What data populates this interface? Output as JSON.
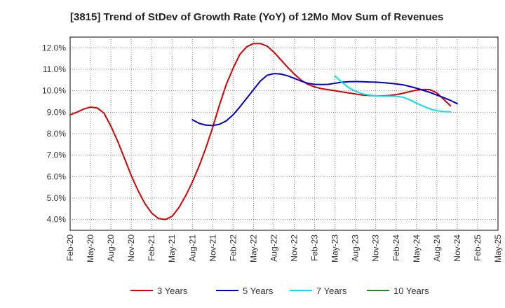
{
  "chart_data": {
    "type": "line",
    "title": "[3815]  Trend of StDev of Growth Rate (YoY) of 12Mo Mov Sum of Revenues",
    "xlabel": "",
    "ylabel": "",
    "ylim": [
      3.5,
      12.5
    ],
    "yticks": [
      4.0,
      5.0,
      6.0,
      7.0,
      8.0,
      9.0,
      10.0,
      11.0,
      12.0
    ],
    "ytick_labels": [
      "4.0%",
      "5.0%",
      "6.0%",
      "7.0%",
      "8.0%",
      "9.0%",
      "10.0%",
      "11.0%",
      "12.0%"
    ],
    "xtick_labels": [
      "Feb-20",
      "May-20",
      "Aug-20",
      "Nov-20",
      "Feb-21",
      "May-21",
      "Aug-21",
      "Nov-21",
      "Feb-22",
      "May-22",
      "Aug-22",
      "Nov-22",
      "Feb-23",
      "May-23",
      "Aug-23",
      "Nov-23",
      "Feb-24",
      "May-24",
      "Aug-24",
      "Nov-24",
      "Feb-25",
      "May-25"
    ],
    "grid": true,
    "legend_position": "bottom",
    "series": [
      {
        "name": "3 Years",
        "color": "#dd0000",
        "start_index": 0,
        "values": [
          8.88,
          9.0,
          9.15,
          9.24,
          9.2,
          8.95,
          8.35,
          7.65,
          6.85,
          6.05,
          5.35,
          4.75,
          4.3,
          4.05,
          4.0,
          4.15,
          4.55,
          5.1,
          5.75,
          6.5,
          7.35,
          8.3,
          9.35,
          10.3,
          11.05,
          11.7,
          12.05,
          12.2,
          12.2,
          12.08,
          11.8,
          11.45,
          11.1,
          10.78,
          10.5,
          10.3,
          10.18,
          10.1,
          10.05,
          10.0,
          9.95,
          9.9,
          9.85,
          9.8,
          9.78,
          9.76,
          9.76,
          9.78,
          9.82,
          9.88,
          9.96,
          10.03,
          10.06,
          10.05,
          9.9,
          9.6,
          9.3
        ]
      },
      {
        "name": "5 Years",
        "color": "#0000cc",
        "start_index": 18,
        "values": [
          8.65,
          8.48,
          8.4,
          8.38,
          8.44,
          8.6,
          8.88,
          9.25,
          9.65,
          10.05,
          10.45,
          10.72,
          10.8,
          10.78,
          10.7,
          10.58,
          10.45,
          10.35,
          10.3,
          10.29,
          10.3,
          10.35,
          10.4,
          10.42,
          10.43,
          10.42,
          10.41,
          10.4,
          10.38,
          10.35,
          10.32,
          10.28,
          10.2,
          10.12,
          10.02,
          9.92,
          9.8,
          9.68,
          9.55,
          9.4
        ]
      },
      {
        "name": "7 Years",
        "color": "#00e5ee",
        "start_index": 39,
        "values": [
          10.68,
          10.4,
          10.15,
          9.98,
          9.86,
          9.8,
          9.76,
          9.75,
          9.75,
          9.74,
          9.7,
          9.58,
          9.42,
          9.28,
          9.15,
          9.07,
          9.03,
          9.02
        ]
      },
      {
        "name": "10 Years",
        "color": "#228b22",
        "start_index": 0,
        "values": []
      }
    ]
  }
}
